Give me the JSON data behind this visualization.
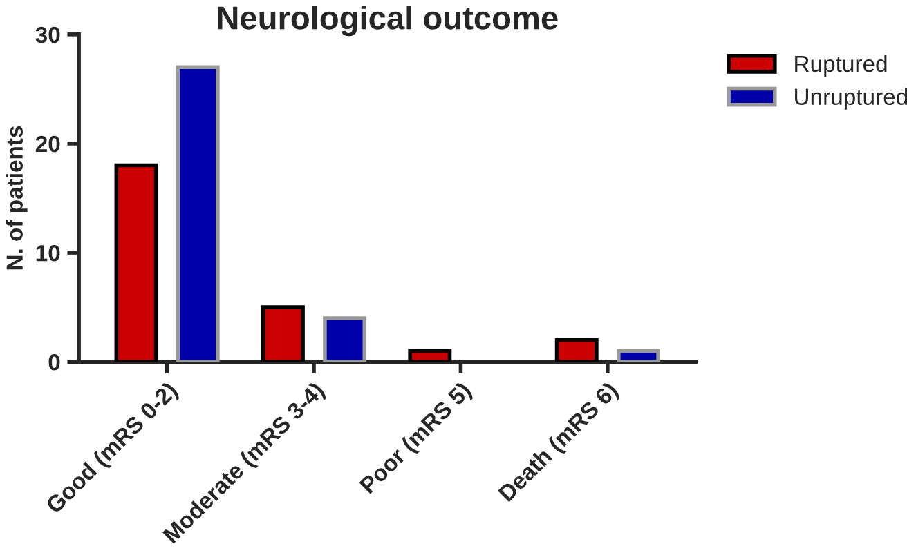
{
  "chart_data": {
    "type": "bar",
    "title": "Neurological outcome",
    "ylabel": "N. of patients",
    "categories": [
      "Good (mRS 0-2)",
      "Moderate (mRS 3-4)",
      "Poor (mRS 5)",
      "Death (mRS 6)"
    ],
    "series": [
      {
        "name": "Ruptured",
        "color": "#cc0000",
        "values": [
          18,
          5,
          1,
          2
        ]
      },
      {
        "name": "Unruptured",
        "color": "#0000aa",
        "values": [
          27,
          4,
          0,
          1
        ]
      }
    ],
    "ylim": [
      0,
      30
    ],
    "yticks": [
      0,
      10,
      20,
      30
    ],
    "grid": false,
    "legend": "top right"
  }
}
